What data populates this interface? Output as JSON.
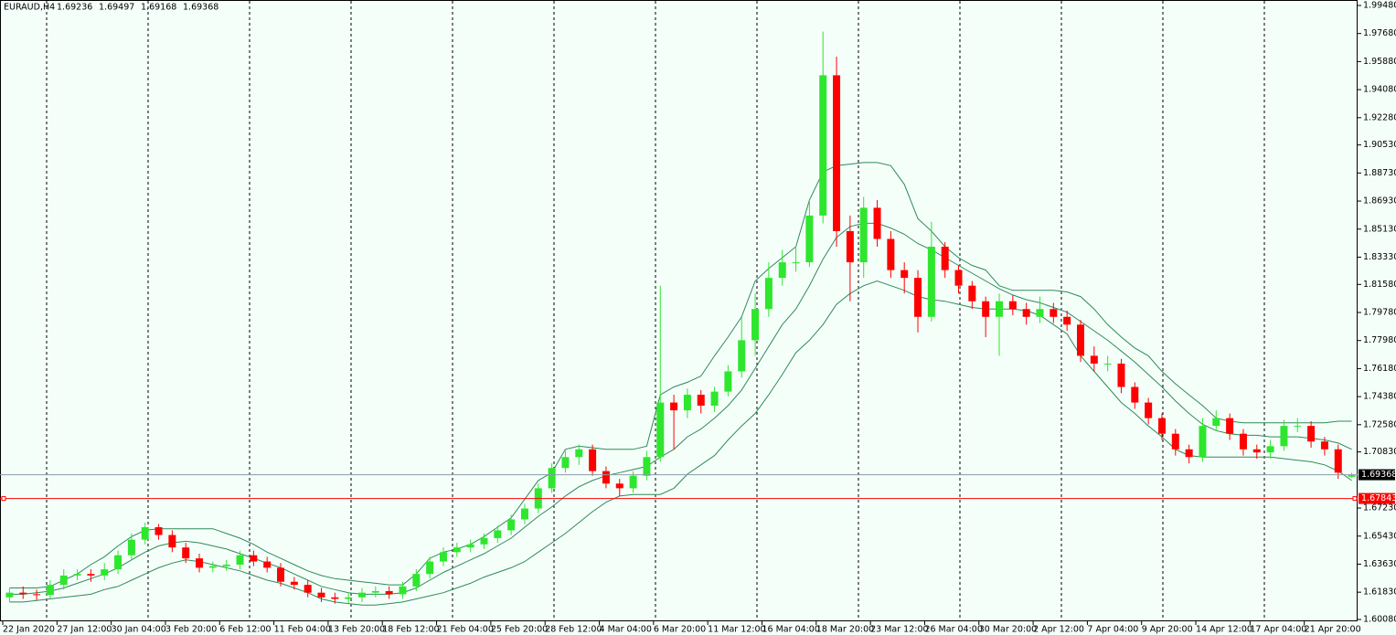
{
  "chart_data": {
    "type": "candlestick",
    "title": "EURAUD,H4",
    "categories": [
      "22 Jan 2020",
      null,
      null,
      null,
      "27 Jan 12:00",
      null,
      null,
      null,
      "30 Jan 04:00",
      null,
      null,
      null,
      "3 Feb 20:00",
      null,
      null,
      null,
      "6 Feb 12:00",
      null,
      null,
      null,
      "11 Feb 04:00",
      null,
      null,
      null,
      "13 Feb 20:00",
      null,
      null,
      null,
      "18 Feb 12:00",
      null,
      null,
      null,
      "21 Feb 04:00",
      null,
      null,
      null,
      "25 Feb 20:00",
      null,
      null,
      null,
      "28 Feb 12:00",
      null,
      null,
      null,
      "4 Mar 04:00",
      null,
      null,
      null,
      "6 Mar 20:00",
      null,
      null,
      null,
      "11 Mar 12:00",
      null,
      null,
      null,
      "16 Mar 04:00",
      null,
      null,
      null,
      "18 Mar 20:00",
      null,
      null,
      null,
      "23 Mar 12:00",
      null,
      null,
      null,
      "26 Mar 04:00",
      null,
      null,
      null,
      "30 Mar 20:00",
      null,
      null,
      null,
      "2 Apr 12:00",
      null,
      null,
      null,
      "7 Apr 04:00",
      null,
      null,
      null,
      "9 Apr 20:00",
      null,
      null,
      null,
      "14 Apr 12:00",
      null,
      null,
      null,
      "17 Apr 04:00",
      null,
      null,
      null,
      "21 Apr 20:00",
      null,
      null,
      null
    ],
    "open": [
      1.615,
      1.618,
      1.617,
      1.6165,
      1.623,
      1.629,
      1.63,
      1.629,
      1.633,
      1.642,
      1.652,
      1.66,
      1.655,
      1.647,
      1.64,
      1.634,
      1.635,
      1.636,
      1.642,
      1.638,
      1.634,
      1.625,
      1.623,
      1.618,
      1.615,
      1.614,
      1.615,
      1.618,
      1.619,
      1.617,
      1.622,
      1.63,
      1.638,
      1.644,
      1.647,
      1.649,
      1.653,
      1.658,
      1.665,
      1.672,
      1.685,
      1.698,
      1.705,
      1.71,
      1.696,
      1.688,
      1.685,
      1.693,
      1.705,
      1.74,
      1.735,
      1.745,
      1.738,
      1.747,
      1.76,
      1.78,
      1.8,
      1.82,
      1.83,
      1.83,
      1.86,
      1.95,
      1.85,
      1.83,
      1.865,
      1.845,
      1.825,
      1.82,
      1.795,
      1.84,
      1.825,
      1.815,
      1.805,
      1.795,
      1.805,
      1.8,
      1.795,
      1.8,
      1.795,
      1.79,
      1.77,
      1.765,
      1.765,
      1.75,
      1.74,
      1.73,
      1.72,
      1.71,
      1.705,
      1.725,
      1.73,
      1.72,
      1.71,
      1.708,
      1.712,
      1.725,
      1.725,
      1.715,
      1.71,
      1.69236
    ],
    "high": [
      1.621,
      1.622,
      1.62,
      1.626,
      1.633,
      1.633,
      1.633,
      1.637,
      1.645,
      1.656,
      1.663,
      1.662,
      1.658,
      1.65,
      1.643,
      1.638,
      1.639,
      1.645,
      1.645,
      1.641,
      1.637,
      1.628,
      1.626,
      1.621,
      1.618,
      1.618,
      1.621,
      1.622,
      1.622,
      1.625,
      1.633,
      1.641,
      1.647,
      1.65,
      1.652,
      1.656,
      1.661,
      1.668,
      1.675,
      1.688,
      1.701,
      1.709,
      1.713,
      1.713,
      1.699,
      1.691,
      1.696,
      1.709,
      1.815,
      1.745,
      1.749,
      1.748,
      1.75,
      1.764,
      1.795,
      1.81,
      1.83,
      1.838,
      1.84,
      1.87,
      1.978,
      1.962,
      1.86,
      1.872,
      1.87,
      1.85,
      1.83,
      1.825,
      1.856,
      1.843,
      1.828,
      1.818,
      1.808,
      1.81,
      1.809,
      1.804,
      1.808,
      1.804,
      1.799,
      1.793,
      1.776,
      1.77,
      1.768,
      1.753,
      1.743,
      1.733,
      1.723,
      1.713,
      1.73,
      1.735,
      1.733,
      1.723,
      1.713,
      1.716,
      1.729,
      1.73,
      1.728,
      1.718,
      1.713,
      1.69497
    ],
    "low": [
      1.612,
      1.614,
      1.613,
      1.614,
      1.62,
      1.626,
      1.625,
      1.626,
      1.63,
      1.639,
      1.649,
      1.652,
      1.644,
      1.637,
      1.631,
      1.631,
      1.632,
      1.633,
      1.635,
      1.631,
      1.622,
      1.62,
      1.615,
      1.612,
      1.611,
      1.611,
      1.612,
      1.615,
      1.614,
      1.614,
      1.619,
      1.627,
      1.635,
      1.641,
      1.644,
      1.646,
      1.65,
      1.655,
      1.662,
      1.669,
      1.682,
      1.695,
      1.7,
      1.693,
      1.685,
      1.68,
      1.682,
      1.69,
      1.702,
      1.71,
      1.73,
      1.733,
      1.734,
      1.744,
      1.756,
      1.77,
      1.795,
      1.815,
      1.824,
      1.827,
      1.855,
      1.84,
      1.805,
      1.82,
      1.84,
      1.82,
      1.81,
      1.785,
      1.792,
      1.82,
      1.81,
      1.8,
      1.782,
      1.77,
      1.796,
      1.79,
      1.791,
      1.791,
      1.786,
      1.766,
      1.76,
      1.76,
      1.746,
      1.736,
      1.726,
      1.716,
      1.706,
      1.701,
      1.702,
      1.722,
      1.716,
      1.706,
      1.704,
      1.704,
      1.709,
      1.721,
      1.711,
      1.706,
      1.691,
      1.69168
    ],
    "close": [
      1.618,
      1.617,
      1.6165,
      1.623,
      1.629,
      1.63,
      1.629,
      1.633,
      1.642,
      1.652,
      1.66,
      1.655,
      1.647,
      1.64,
      1.634,
      1.635,
      1.636,
      1.642,
      1.638,
      1.634,
      1.625,
      1.623,
      1.618,
      1.615,
      1.614,
      1.615,
      1.618,
      1.619,
      1.617,
      1.622,
      1.63,
      1.638,
      1.644,
      1.647,
      1.649,
      1.653,
      1.658,
      1.665,
      1.672,
      1.685,
      1.698,
      1.705,
      1.71,
      1.696,
      1.688,
      1.685,
      1.693,
      1.705,
      1.74,
      1.735,
      1.745,
      1.738,
      1.747,
      1.76,
      1.78,
      1.8,
      1.82,
      1.83,
      1.83,
      1.86,
      1.95,
      1.85,
      1.83,
      1.865,
      1.845,
      1.825,
      1.82,
      1.795,
      1.84,
      1.825,
      1.815,
      1.805,
      1.795,
      1.805,
      1.8,
      1.795,
      1.8,
      1.795,
      1.79,
      1.77,
      1.765,
      1.765,
      1.75,
      1.74,
      1.73,
      1.72,
      1.71,
      1.705,
      1.725,
      1.73,
      1.72,
      1.71,
      1.708,
      1.712,
      1.725,
      1.725,
      1.715,
      1.71,
      1.695,
      1.69368
    ],
    "up_color": "#2ee62e",
    "down_color": "#ff0000",
    "bands": {
      "color": "#2e8b57",
      "upper": [
        1.621,
        1.621,
        1.621,
        1.622,
        1.626,
        1.63,
        1.636,
        1.641,
        1.648,
        1.654,
        1.658,
        1.659,
        1.659,
        1.659,
        1.659,
        1.659,
        1.656,
        1.653,
        1.649,
        1.644,
        1.64,
        1.636,
        1.632,
        1.629,
        1.627,
        1.626,
        1.625,
        1.624,
        1.623,
        1.623,
        1.63,
        1.64,
        1.644,
        1.646,
        1.649,
        1.654,
        1.66,
        1.666,
        1.678,
        1.69,
        1.695,
        1.71,
        1.712,
        1.711,
        1.71,
        1.71,
        1.71,
        1.712,
        1.745,
        1.75,
        1.753,
        1.757,
        1.77,
        1.782,
        1.795,
        1.818,
        1.826,
        1.833,
        1.84,
        1.87,
        1.888,
        1.892,
        1.893,
        1.894,
        1.894,
        1.892,
        1.88,
        1.858,
        1.85,
        1.84,
        1.833,
        1.828,
        1.825,
        1.815,
        1.812,
        1.812,
        1.812,
        1.812,
        1.811,
        1.808,
        1.8,
        1.79,
        1.782,
        1.775,
        1.77,
        1.76,
        1.752,
        1.745,
        1.738,
        1.73,
        1.728,
        1.727,
        1.727,
        1.727,
        1.727,
        1.727,
        1.727,
        1.727,
        1.728,
        1.728
      ],
      "middle": [
        1.617,
        1.617,
        1.618,
        1.619,
        1.621,
        1.624,
        1.627,
        1.63,
        1.634,
        1.639,
        1.644,
        1.648,
        1.65,
        1.651,
        1.65,
        1.648,
        1.646,
        1.643,
        1.64,
        1.637,
        1.634,
        1.63,
        1.626,
        1.622,
        1.62,
        1.618,
        1.617,
        1.617,
        1.617,
        1.618,
        1.621,
        1.626,
        1.631,
        1.635,
        1.639,
        1.643,
        1.648,
        1.653,
        1.66,
        1.667,
        1.673,
        1.68,
        1.686,
        1.69,
        1.693,
        1.695,
        1.697,
        1.699,
        1.705,
        1.71,
        1.718,
        1.723,
        1.73,
        1.738,
        1.748,
        1.762,
        1.776,
        1.79,
        1.8,
        1.815,
        1.832,
        1.846,
        1.853,
        1.855,
        1.855,
        1.852,
        1.848,
        1.842,
        1.838,
        1.833,
        1.828,
        1.823,
        1.818,
        1.813,
        1.809,
        1.806,
        1.804,
        1.801,
        1.798,
        1.792,
        1.786,
        1.78,
        1.773,
        1.766,
        1.758,
        1.75,
        1.741,
        1.733,
        1.726,
        1.722,
        1.72,
        1.719,
        1.719,
        1.718,
        1.718,
        1.718,
        1.717,
        1.716,
        1.714,
        1.71
      ],
      "lower": [
        1.612,
        1.612,
        1.613,
        1.614,
        1.615,
        1.616,
        1.617,
        1.62,
        1.622,
        1.626,
        1.63,
        1.634,
        1.637,
        1.639,
        1.638,
        1.636,
        1.634,
        1.632,
        1.629,
        1.626,
        1.624,
        1.621,
        1.618,
        1.614,
        1.612,
        1.611,
        1.61,
        1.61,
        1.611,
        1.612,
        1.614,
        1.616,
        1.618,
        1.621,
        1.624,
        1.628,
        1.631,
        1.634,
        1.638,
        1.644,
        1.65,
        1.656,
        1.663,
        1.67,
        1.676,
        1.68,
        1.681,
        1.681,
        1.681,
        1.685,
        1.694,
        1.7,
        1.706,
        1.716,
        1.725,
        1.733,
        1.745,
        1.758,
        1.772,
        1.78,
        1.79,
        1.803,
        1.81,
        1.815,
        1.818,
        1.815,
        1.812,
        1.808,
        1.806,
        1.805,
        1.803,
        1.801,
        1.8,
        1.8,
        1.8,
        1.799,
        1.796,
        1.79,
        1.784,
        1.77,
        1.76,
        1.75,
        1.74,
        1.733,
        1.725,
        1.718,
        1.71,
        1.706,
        1.705,
        1.705,
        1.705,
        1.705,
        1.705,
        1.705,
        1.704,
        1.703,
        1.702,
        1.7,
        1.696,
        1.69
      ]
    },
    "hlines": [
      {
        "value": 1.67843,
        "color": "#ff0000"
      }
    ],
    "bid_color": "#8a9aa8",
    "ylim": [
      1.6008,
      1.9948
    ],
    "yticks": [
      {
        "value": 1.9948,
        "label": "1.99480"
      },
      {
        "value": 1.9768,
        "label": "1.97680"
      },
      {
        "value": 1.9588,
        "label": "1.95880"
      },
      {
        "value": 1.9408,
        "label": "1.94080"
      },
      {
        "value": 1.9228,
        "label": "1.92280"
      },
      {
        "value": 1.9053,
        "label": "1.90530"
      },
      {
        "value": 1.8873,
        "label": "1.88730"
      },
      {
        "value": 1.8693,
        "label": "1.86930"
      },
      {
        "value": 1.8513,
        "label": "1.85130"
      },
      {
        "value": 1.8333,
        "label": "1.83330"
      },
      {
        "value": 1.8158,
        "label": "1.81580"
      },
      {
        "value": 1.7978,
        "label": "1.79780"
      },
      {
        "value": 1.7798,
        "label": "1.77980"
      },
      {
        "value": 1.7618,
        "label": "1.76180"
      },
      {
        "value": 1.7438,
        "label": "1.74380"
      },
      {
        "value": 1.7258,
        "label": "1.72580"
      },
      {
        "value": 1.7083,
        "label": "1.70830"
      },
      {
        "value": 1.6723,
        "label": "1.67230"
      },
      {
        "value": 1.6543,
        "label": "1.65430"
      },
      {
        "value": 1.6363,
        "label": "1.63630"
      },
      {
        "value": 1.6183,
        "label": "1.61830"
      },
      {
        "value": 1.6008,
        "label": "1.60080"
      }
    ]
  }
}
